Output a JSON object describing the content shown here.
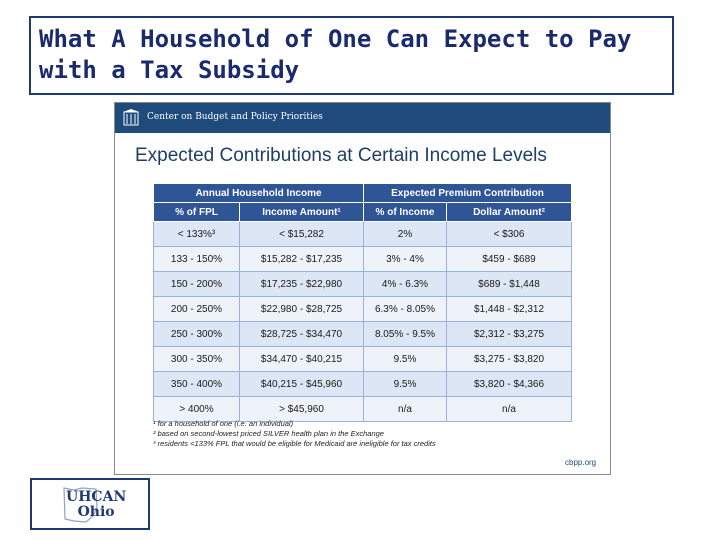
{
  "title": "What A Household of One Can Expect to Pay with a Tax Subsidy",
  "slide": {
    "org_bar": "Center on Budget and Policy Priorities",
    "heading": "Expected Contributions at Certain Income Levels",
    "header_groups": [
      "Annual Household Income",
      "Expected Premium Contribution"
    ],
    "columns": [
      "% of FPL",
      "Income Amount¹",
      "% of Income",
      "Dollar Amount²"
    ],
    "rows": [
      [
        "< 133%³",
        "< $15,282",
        "2%",
        "< $306"
      ],
      [
        "133 - 150%",
        "$15,282 - $17,235",
        "3% - 4%",
        "$459 - $689"
      ],
      [
        "150 - 200%",
        "$17,235 - $22,980",
        "4% - 6.3%",
        "$689 - $1,448"
      ],
      [
        "200 - 250%",
        "$22,980 - $28,725",
        "6.3% - 8.05%",
        "$1,448 - $2,312"
      ],
      [
        "250 - 300%",
        "$28,725 - $34,470",
        "8.05% - 9.5%",
        "$2,312 - $3,275"
      ],
      [
        "300 - 350%",
        "$34,470 - $40,215",
        "9.5%",
        "$3,275 - $3,820"
      ],
      [
        "350 - 400%",
        "$40,215 - $45,960",
        "9.5%",
        "$3,820 - $4,366"
      ],
      [
        "> 400%",
        "> $45,960",
        "n/a",
        "n/a"
      ]
    ],
    "notes": [
      "¹ for a household of one (i.e. an individual)",
      "² based on second-lowest priced SILVER health plan in the Exchange",
      "³ residents <133% FPL that would be eligible for Medicaid are ineligible for tax credits"
    ],
    "source": "cbpp.org"
  },
  "logo": {
    "line1": "UHCAN",
    "line2": "Ohio"
  },
  "colors": {
    "title": "#1a2a6c",
    "header": "#2f5597",
    "band": "#1f4a7c"
  }
}
